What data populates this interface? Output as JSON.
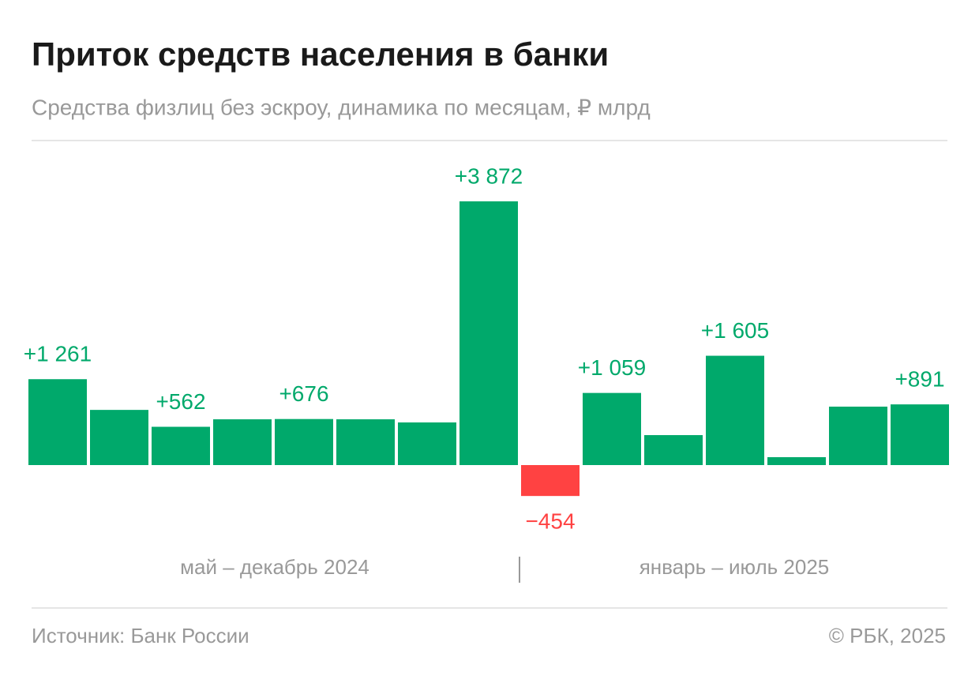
{
  "chart_data": {
    "type": "bar",
    "title": "Приток средств населения в банки",
    "subtitle": "Средства физлиц без эскроу, динамика по месяцам, ₽ млрд",
    "categories": [
      null,
      null,
      null,
      null,
      null,
      null,
      null,
      null,
      null,
      null,
      null,
      null,
      null,
      null,
      null
    ],
    "values": [
      1261,
      810,
      562,
      672,
      676,
      672,
      626,
      3872,
      -454,
      1059,
      440,
      1605,
      116,
      858,
      891
    ],
    "value_labels": [
      "+1 261",
      null,
      "+562",
      null,
      "+676",
      null,
      null,
      "+3 872",
      "−454",
      "+1 059",
      null,
      "+1 605",
      null,
      null,
      "+891"
    ],
    "color": "#00a96b",
    "negative_color": "#ff4242",
    "group_labels": [
      "май – декабрь 2024",
      "январь – июль 2025"
    ],
    "source": "Источник: Банк России",
    "copyright": "© РБК, 2025"
  }
}
